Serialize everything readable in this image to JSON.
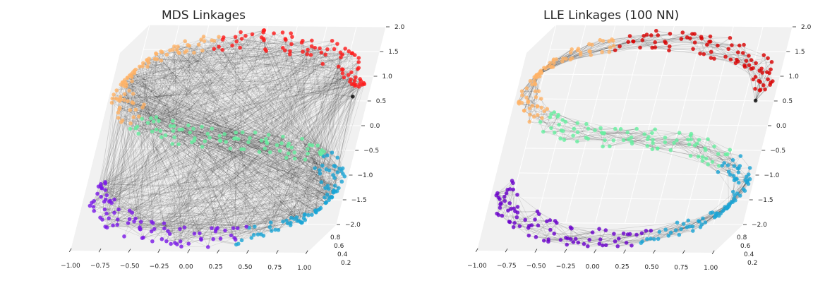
{
  "chart_data": [
    {
      "type": "scatter",
      "subtype": "3d-scatter-with-linkages",
      "title": "MDS Linkages",
      "x_ticks": [
        "−1.00",
        "−0.75",
        "−0.50",
        "−0.25",
        "0.00",
        "0.25",
        "0.50",
        "0.75",
        "1.00"
      ],
      "y_ticks": [
        "0.2",
        "0.4",
        "0.6",
        "0.8"
      ],
      "z_ticks": [
        "2.0",
        "1.5",
        "1.0",
        "0.5",
        "0.0",
        "−0.5",
        "−1.0",
        "−1.5",
        "−2.0"
      ],
      "xlim": [
        -1.0,
        1.0
      ],
      "ylim": [
        0.2,
        0.8
      ],
      "zlim": [
        -2.0,
        2.0
      ],
      "grid": true,
      "linkage_pattern": "long-range",
      "color_groups": [
        "#ff1a1a",
        "#ffb366",
        "#66f0a0",
        "#1aa5d6",
        "#7a18e8"
      ]
    },
    {
      "type": "scatter",
      "subtype": "3d-scatter-with-linkages",
      "title": "LLE Linkages (100 NN)",
      "x_ticks": [
        "−1.00",
        "−0.75",
        "−0.50",
        "−0.25",
        "0.00",
        "0.25",
        "0.50",
        "0.75",
        "1.00"
      ],
      "y_ticks": [
        "0.2",
        "0.4",
        "0.6",
        "0.8"
      ],
      "z_ticks": [
        "2.0",
        "1.5",
        "1.0",
        "0.5",
        "0.0",
        "−0.5",
        "−1.0",
        "−1.5",
        "−2.0"
      ],
      "xlim": [
        -1.0,
        1.0
      ],
      "ylim": [
        0.2,
        0.8
      ],
      "zlim": [
        -2.0,
        2.0
      ],
      "grid": true,
      "linkage_pattern": "nearest-neighbour",
      "color_groups": [
        "#d90000",
        "#ffb366",
        "#66f0a0",
        "#1aa5d6",
        "#6a00cc"
      ]
    }
  ]
}
